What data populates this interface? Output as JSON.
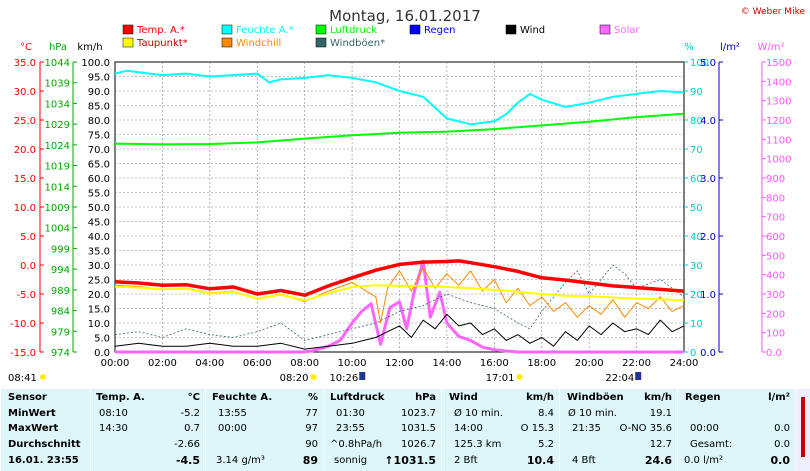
{
  "chart_data": {
    "type": "line",
    "title": "Montag, 16.01.2017",
    "copyright": "© Weber Mike",
    "x_ticks": [
      "00:00",
      "02:00",
      "04:00",
      "06:00",
      "08:00",
      "10:00",
      "12:00",
      "14:00",
      "16:00",
      "18:00",
      "20:00",
      "22:00",
      "24:00"
    ],
    "axes": {
      "temp": {
        "label": "°C",
        "ticks": [
          "35.0",
          "30.0",
          "25.0",
          "20.0",
          "15.0",
          "10.0",
          "5.0",
          "0.0",
          "-5.0",
          "-10.0",
          "-15.0"
        ],
        "range": [
          -15,
          35
        ],
        "color": "#ff0000"
      },
      "pressure": {
        "label": "hPa",
        "ticks": [
          "1044",
          "1039",
          "1034",
          "1029",
          "1024",
          "1019",
          "1014",
          "1009",
          "1004",
          "999",
          "994",
          "989",
          "984",
          "979",
          "974"
        ],
        "range": [
          974,
          1044
        ],
        "color": "#00aa00"
      },
      "wind": {
        "label": "km/h",
        "ticks": [
          "100.0",
          "95.0",
          "90.0",
          "85.0",
          "80.0",
          "75.0",
          "70.0",
          "65.0",
          "60.0",
          "55.0",
          "50.0",
          "45.0",
          "40.0",
          "35.0",
          "30.0",
          "25.0",
          "20.0",
          "15.0",
          "10.0",
          "5.0",
          "0.0"
        ],
        "range": [
          0,
          100
        ],
        "color": "#000000"
      },
      "humidity": {
        "label": "%",
        "ticks": [
          "100",
          "90",
          "80",
          "70",
          "60",
          "50",
          "40",
          "30",
          "20",
          "10",
          "0"
        ],
        "range": [
          0,
          100
        ],
        "color": "#00cccc"
      },
      "rain": {
        "label": "l/m²",
        "ticks": [
          "5.0",
          "4.0",
          "3.0",
          "2.0",
          "1.0",
          "0.0"
        ],
        "range": [
          0,
          5
        ],
        "color": "#0000cc"
      },
      "solar": {
        "label": "W/m²",
        "ticks": [
          "1500",
          "1400",
          "1300",
          "1200",
          "1100",
          "1000",
          "900",
          "800",
          "700",
          "600",
          "500",
          "400",
          "300",
          "200",
          "100",
          "0.0"
        ],
        "range": [
          0,
          1500
        ],
        "color": "#ff55ff"
      }
    },
    "legend": [
      {
        "name": "Temp. A.*",
        "color": "#ff0000"
      },
      {
        "name": "Feuchte A.*",
        "color": "#00ffff"
      },
      {
        "name": "Luftdruck",
        "color": "#00ff00"
      },
      {
        "name": "Regen",
        "color": "#0000ff"
      },
      {
        "name": "Wind",
        "color": "#000000"
      },
      {
        "name": "Solar",
        "color": "#ff66ff"
      },
      {
        "name": "Taupunkt*",
        "color": "#ffff00"
      },
      {
        "name": "Windchill",
        "color": "#ff8800"
      },
      {
        "name": "Windböen*",
        "color": "#336666"
      }
    ],
    "series": [
      {
        "name": "Temp. A.*",
        "axis": "temp",
        "color": "#ff0000",
        "x": [
          0,
          1,
          2,
          3,
          4,
          5,
          6,
          7,
          8,
          9,
          10,
          11,
          12,
          13,
          14,
          14.5,
          15,
          16,
          17,
          18,
          19,
          20,
          21,
          22,
          23,
          24
        ],
        "y": [
          -2.9,
          -3.1,
          -3.5,
          -3.4,
          -4.1,
          -3.8,
          -5.0,
          -4.4,
          -5.2,
          -3.6,
          -2.2,
          -0.9,
          0.1,
          0.5,
          0.6,
          0.7,
          0.4,
          -0.3,
          -1.1,
          -2.2,
          -2.6,
          -3.1,
          -3.6,
          -3.9,
          -4.2,
          -4.5
        ]
      },
      {
        "name": "Taupunkt*",
        "axis": "temp",
        "color": "#ffff00",
        "x": [
          0,
          1,
          2,
          3,
          4,
          5,
          6,
          7,
          8,
          9,
          10,
          11,
          12,
          13,
          14,
          15,
          16,
          17,
          18,
          19,
          20,
          21,
          22,
          23,
          24
        ],
        "y": [
          -3.7,
          -3.9,
          -4.2,
          -4.1,
          -4.9,
          -4.6,
          -5.8,
          -5.1,
          -6.1,
          -4.9,
          -3.8,
          -3.5,
          -3.6,
          -3.6,
          -3.8,
          -4.0,
          -4.3,
          -4.6,
          -5.0,
          -5.3,
          -5.4,
          -5.6,
          -5.8,
          -5.9,
          -6.1
        ]
      },
      {
        "name": "Feuchte A.*",
        "axis": "humidity",
        "color": "#00ffff",
        "x": [
          0,
          0.5,
          1,
          2,
          3,
          4,
          5,
          6,
          6.5,
          7,
          8,
          9,
          10,
          11,
          12,
          13,
          14,
          15,
          16,
          16.5,
          17,
          17.5,
          18,
          19,
          20,
          21,
          22,
          23,
          24
        ],
        "y": [
          96,
          97,
          96.5,
          95.5,
          96,
          95,
          95.5,
          96,
          93,
          94,
          94.5,
          95.5,
          94.5,
          93,
          90,
          88,
          80.5,
          78.5,
          79.5,
          82,
          86,
          89,
          87,
          84.5,
          86,
          88,
          89,
          90,
          89.5
        ]
      },
      {
        "name": "Luftdruck",
        "axis": "pressure",
        "color": "#00ff00",
        "x": [
          0,
          2,
          4,
          6,
          8,
          10,
          12,
          14,
          16,
          18,
          20,
          22,
          24
        ],
        "y": [
          1024.3,
          1024.1,
          1024.2,
          1024.6,
          1025.5,
          1026.3,
          1026.9,
          1027.2,
          1027.8,
          1028.7,
          1029.6,
          1030.7,
          1031.5
        ]
      },
      {
        "name": "Windchill",
        "axis": "temp",
        "color": "#ff8800",
        "x": [
          0,
          1,
          2,
          3,
          4,
          5,
          6,
          7,
          8,
          9,
          10,
          11,
          11.2,
          11.5,
          12,
          12.5,
          13,
          13.5,
          14,
          14.5,
          15,
          15.5,
          16,
          16.5,
          17,
          17.5,
          18,
          18.5,
          19,
          19.5,
          20,
          20.5,
          21,
          21.5,
          22,
          22.5,
          23,
          23.5,
          24
        ],
        "y": [
          -3.5,
          -3.7,
          -4.2,
          -4.0,
          -4.8,
          -4.5,
          -5.9,
          -5.1,
          -6.3,
          -4.5,
          -3.0,
          -5.5,
          -10.0,
          -4.0,
          -1.0,
          -4.5,
          -0.5,
          -4.0,
          -1.5,
          -3.5,
          -1.0,
          -4.5,
          -2.5,
          -6.5,
          -4.0,
          -7.0,
          -5.5,
          -8.0,
          -6.5,
          -9.0,
          -7.0,
          -8.5,
          -6.0,
          -9.0,
          -6.5,
          -7.5,
          -5.5,
          -8.0,
          -7.0
        ]
      },
      {
        "name": "Wind",
        "axis": "wind",
        "color": "#000000",
        "x": [
          0,
          1,
          2,
          3,
          4,
          5,
          6,
          7,
          8,
          9,
          10,
          10.5,
          11,
          11.5,
          12,
          12.5,
          13,
          13.5,
          14,
          14.5,
          15,
          15.5,
          16,
          16.5,
          17,
          17.5,
          18,
          18.5,
          19,
          19.5,
          20,
          20.5,
          21,
          21.5,
          22,
          22.5,
          23,
          23.5,
          24
        ],
        "y": [
          2,
          3,
          2,
          2,
          3,
          2,
          2,
          3,
          1,
          2,
          3,
          4,
          5,
          7,
          9,
          5,
          11,
          8,
          13,
          9,
          10,
          6,
          8,
          4,
          6,
          3,
          5,
          2,
          7,
          4,
          9,
          6,
          10,
          7,
          8,
          6,
          11,
          7,
          9
        ]
      },
      {
        "name": "Windböen*",
        "axis": "wind",
        "color": "#336666",
        "x": [
          0,
          1,
          2,
          3,
          4,
          5,
          6,
          7,
          8,
          9,
          10,
          11,
          12,
          13,
          14,
          15,
          16,
          17,
          17.5,
          18,
          19,
          19.5,
          20,
          21,
          21.5,
          22,
          23,
          24
        ],
        "y": [
          6,
          7,
          5,
          8,
          6,
          5,
          7,
          10,
          4,
          6,
          8,
          10,
          14,
          16,
          20,
          17,
          15,
          10,
          8,
          14,
          24,
          28,
          20,
          30,
          27,
          22,
          25,
          19
        ]
      },
      {
        "name": "Solar",
        "axis": "solar",
        "color": "#ff66ff",
        "x": [
          0,
          7.9,
          8.3,
          9,
          9.5,
          10,
          10.4,
          10.8,
          11.2,
          11.6,
          12,
          12.3,
          12.6,
          13,
          13.3,
          13.7,
          14,
          14.5,
          15,
          15.5,
          16,
          16.5,
          17,
          24
        ],
        "y": [
          0,
          0,
          5,
          30,
          60,
          150,
          210,
          250,
          40,
          230,
          260,
          120,
          300,
          470,
          180,
          310,
          150,
          80,
          60,
          25,
          12,
          5,
          0,
          0
        ]
      }
    ],
    "markers": [
      {
        "label": "08:41",
        "x": 8.68,
        "icon": "sun"
      },
      {
        "label": "08:20",
        "x": 8.33,
        "icon": "sun"
      },
      {
        "label": "10:26",
        "x": 10.43,
        "icon": "moon"
      },
      {
        "label": "17:01",
        "x": 17.02,
        "icon": "sun"
      },
      {
        "label": "22:04",
        "x": 22.07,
        "icon": "moon"
      }
    ],
    "grid": true
  },
  "table": {
    "rows": [
      "Sensor",
      "MinWert",
      "MaxWert",
      "Durchschnitt",
      "16.01. 23:55"
    ],
    "temp": {
      "header": "Temp. A.",
      "unit": "°C",
      "min_time": "08:10",
      "min": "-5.2",
      "max_time": "14:30",
      "max": "0.7",
      "avg": "-2.66",
      "current": "-4.5"
    },
    "humidity": {
      "header": "Feuchte A.",
      "unit": "%",
      "min_time": "13:55",
      "min": "77",
      "max_time": "00:00",
      "max": "97",
      "avg": "90",
      "abs": "3.14 g/m³",
      "current": "89"
    },
    "pressure": {
      "header": "Luftdruck",
      "unit": "hPa",
      "min_time": "01:30",
      "min": "1023.7",
      "max_time": "23:55",
      "max": "1031.5",
      "trend": "^0.8hPa/h",
      "avg": "1026.7",
      "forecast": "sonnig",
      "current": "1031.5"
    },
    "wind": {
      "header": "Wind",
      "unit": "km/h",
      "r1_label": "Ø 10 min.",
      "r1_val": "8.4",
      "r2_time": "14:00",
      "r2_dir": "O 15.3",
      "r3_label": "125.3 km",
      "r3_val": "5.2",
      "bft": "2 Bft",
      "current": "10.4"
    },
    "gust": {
      "header": "Windböen",
      "unit": "km/h",
      "r1_label": "Ø 10 min.",
      "r1_val": "19.1",
      "r2_time": "21:35",
      "r2_dir": "O-NO 35.6",
      "avg": "12.7",
      "bft": "4 Bft",
      "current": "24.6"
    },
    "rain": {
      "header": "Regen",
      "unit": "l/m²",
      "r1_time": "00:00",
      "r1_val": "0.0",
      "r2_label": "Gesamt:",
      "r2_val": "0.0",
      "current_label": "0.0 l/m²",
      "current": "0.0"
    }
  }
}
